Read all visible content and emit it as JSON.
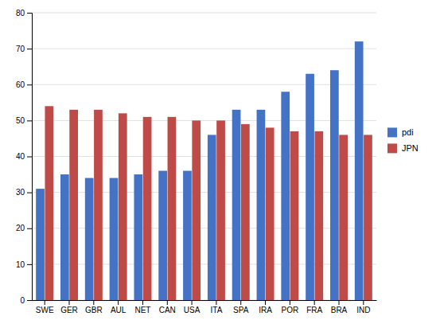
{
  "chart_data": {
    "type": "bar",
    "categories": [
      "SWE",
      "GER",
      "GBR",
      "AUL",
      "NET",
      "CAN",
      "USA",
      "ITA",
      "SPA",
      "IRA",
      "POR",
      "FRA",
      "BRA",
      "IND"
    ],
    "series": [
      {
        "name": "pdi",
        "color": "#4472C4",
        "values": [
          31,
          35,
          34,
          34,
          35,
          36,
          36,
          46,
          53,
          53,
          58,
          63,
          64,
          72
        ]
      },
      {
        "name": "JPN",
        "color": "#BE4B48",
        "values": [
          54,
          53,
          53,
          52,
          51,
          51,
          50,
          50,
          49,
          48,
          47,
          47,
          46,
          46
        ]
      }
    ],
    "ylim": [
      0,
      80
    ],
    "yticks": [
      0,
      10,
      20,
      30,
      40,
      50,
      60,
      70,
      80
    ],
    "grid": true,
    "legend": "right"
  }
}
